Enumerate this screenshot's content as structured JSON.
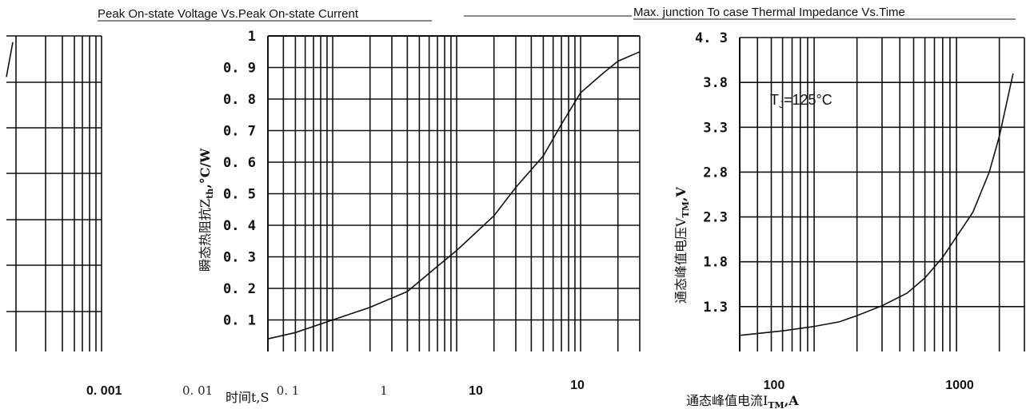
{
  "titles": {
    "left": "Peak On-state Voltage Vs.Peak On-state Current",
    "right": "Max. junction To case Thermal Impedance Vs.Time"
  },
  "chart_data": [
    {
      "id": "left-partial",
      "type": "line",
      "x_scale": "log",
      "x_ticks": [
        "0. 001",
        "0. 01"
      ],
      "series": [
        {
          "x": [
            0.001,
            0.0012
          ],
          "y": [
            0.87,
            0.98
          ]
        }
      ]
    },
    {
      "id": "thermal-impedance",
      "type": "line",
      "x_scale": "log",
      "xlim": [
        0.03,
        30
      ],
      "ylim": [
        0,
        1
      ],
      "y_ticks": [
        "0. 1",
        "0. 2",
        "0. 3",
        "0. 4",
        "0. 5",
        "0. 6",
        "0. 7",
        "0. 8",
        "0. 9",
        "1"
      ],
      "y_tick_values": [
        0.1,
        0.2,
        0.3,
        0.4,
        0.5,
        0.6,
        0.7,
        0.8,
        0.9,
        1.0
      ],
      "x_ticks": [
        "0. 1",
        "1",
        "10"
      ],
      "x_tick_values": [
        0.1,
        1,
        10
      ],
      "xlabel": "时间t,S",
      "ylabel_main": "瞬态热阻抗Z",
      "ylabel_sub": "th",
      "ylabel_unit": ",°C/W",
      "series": [
        {
          "x": [
            0.03,
            0.05,
            0.1,
            0.2,
            0.4,
            0.7,
            1,
            2,
            3,
            5,
            7,
            10,
            15,
            20,
            30
          ],
          "y": [
            0.04,
            0.06,
            0.1,
            0.14,
            0.19,
            0.27,
            0.32,
            0.43,
            0.52,
            0.62,
            0.72,
            0.82,
            0.88,
            0.92,
            0.95
          ]
        }
      ]
    },
    {
      "id": "on-state-voltage",
      "type": "line",
      "x_scale": "log",
      "xlim": [
        30,
        3000
      ],
      "ylim": [
        0.8,
        4.3
      ],
      "y_ticks": [
        "1.3",
        "1.8",
        "2.3",
        "2.8",
        "3.3",
        "3.8",
        "4. 3"
      ],
      "y_tick_values": [
        1.3,
        1.8,
        2.3,
        2.8,
        3.3,
        3.8,
        4.3
      ],
      "x_ticks": [
        "10",
        "100",
        "1000"
      ],
      "x_tick_values": [
        10,
        100,
        1000
      ],
      "xlabel_main": "通态峰值电流I",
      "xlabel_sub": "TM",
      "xlabel_unit": ",A",
      "ylabel_main": "通态峰值电压V",
      "ylabel_sub": "TM",
      "ylabel_unit": ",V",
      "annotation_main": "T",
      "annotation_sub": "J",
      "annotation_rest": "=125°C",
      "series": [
        {
          "x": [
            30,
            60,
            100,
            150,
            200,
            300,
            450,
            600,
            800,
            1000,
            1300,
            1700,
            2000,
            2500
          ],
          "y": [
            0.98,
            1.03,
            1.08,
            1.13,
            1.2,
            1.31,
            1.45,
            1.62,
            1.85,
            2.08,
            2.35,
            2.8,
            3.2,
            3.9
          ]
        }
      ]
    }
  ]
}
